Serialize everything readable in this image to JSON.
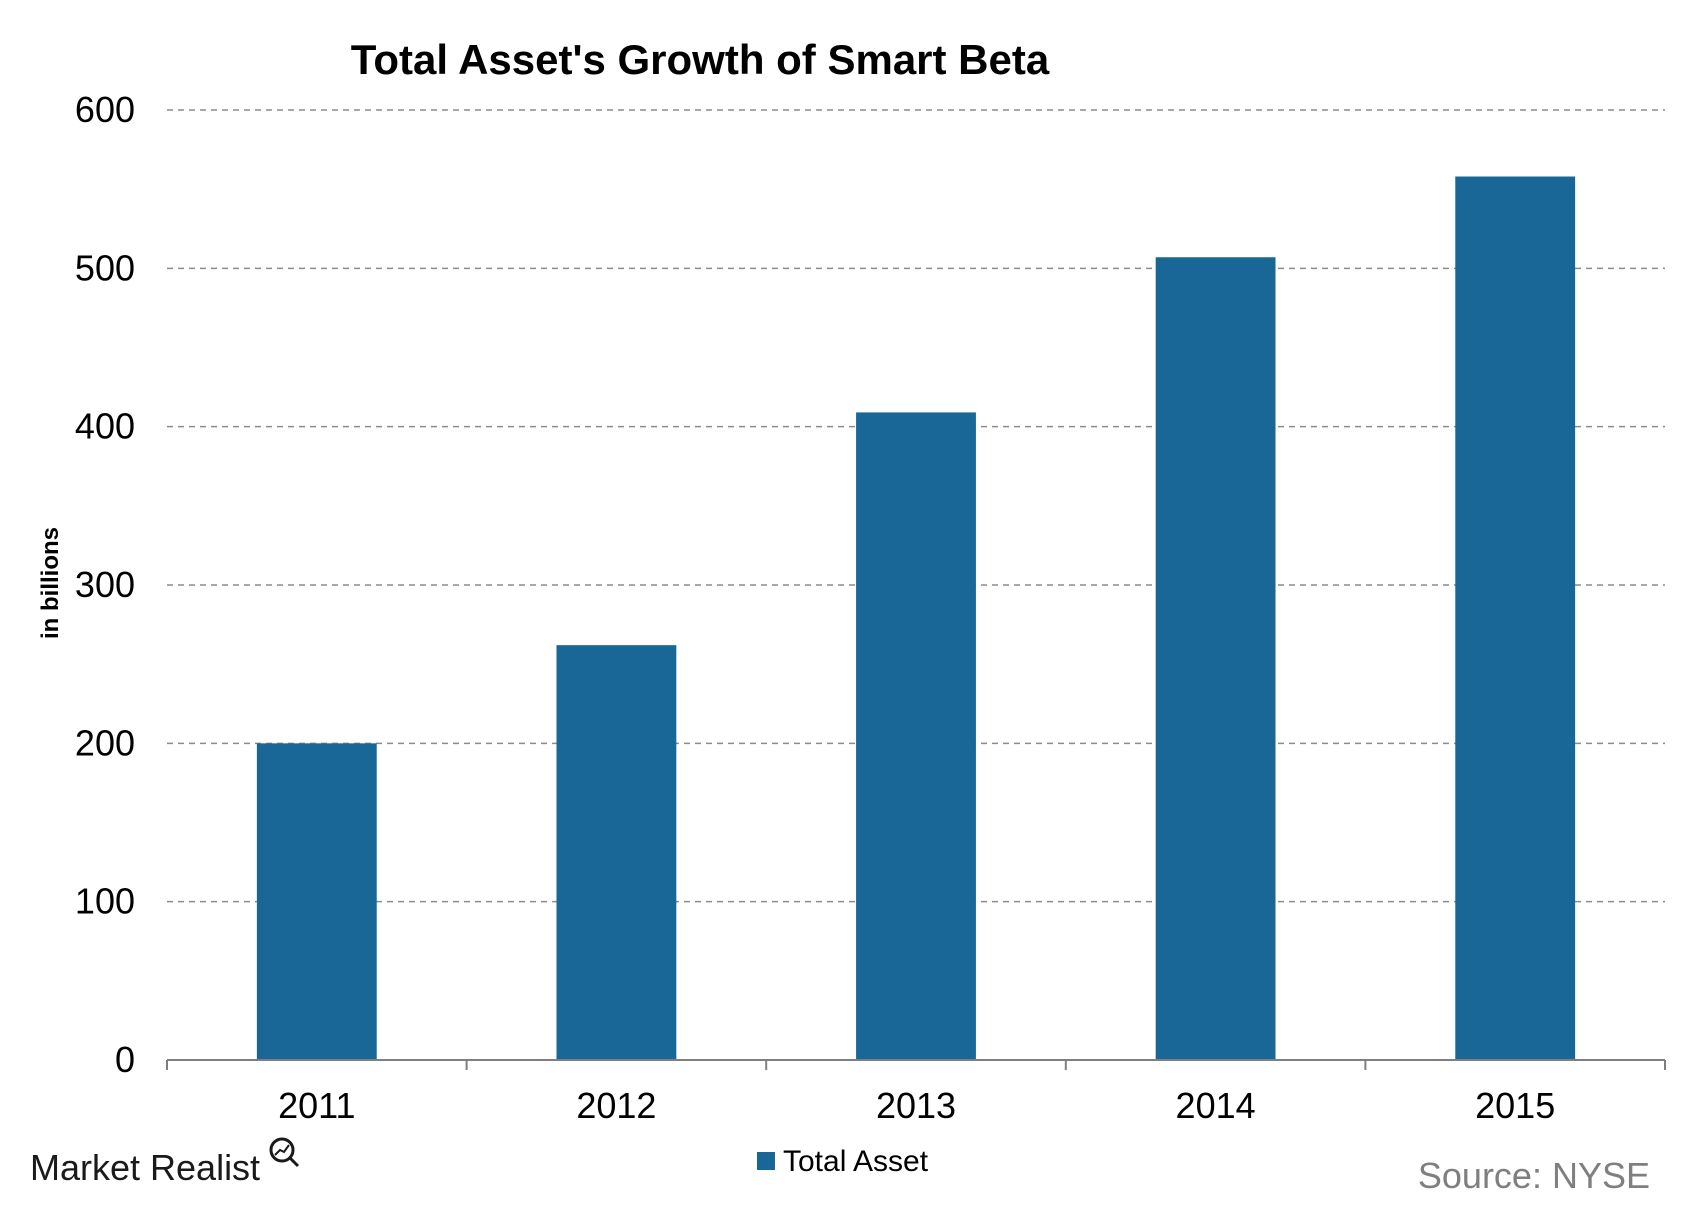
{
  "chart_data": {
    "type": "bar",
    "title": "Total Asset's Growth of Smart Beta",
    "xlabel": "",
    "ylabel": "in billions",
    "categories": [
      "2011",
      "2012",
      "2013",
      "2014",
      "2015"
    ],
    "series": [
      {
        "name": "Total Asset",
        "values": [
          200,
          262,
          409,
          507,
          558
        ]
      }
    ],
    "ylim": [
      0,
      600
    ],
    "yticks": [
      0,
      100,
      200,
      300,
      400,
      500,
      600
    ],
    "grid": true,
    "legend_position": "bottom-center",
    "colors": {
      "bar": "#186797",
      "grid": "#8c8c8c",
      "axis": "#7f7f7f",
      "text": "#000000",
      "source": "#7f7f7f"
    }
  },
  "branding": {
    "logo_text": "Market Realist",
    "source_text": "Source: NYSE"
  }
}
